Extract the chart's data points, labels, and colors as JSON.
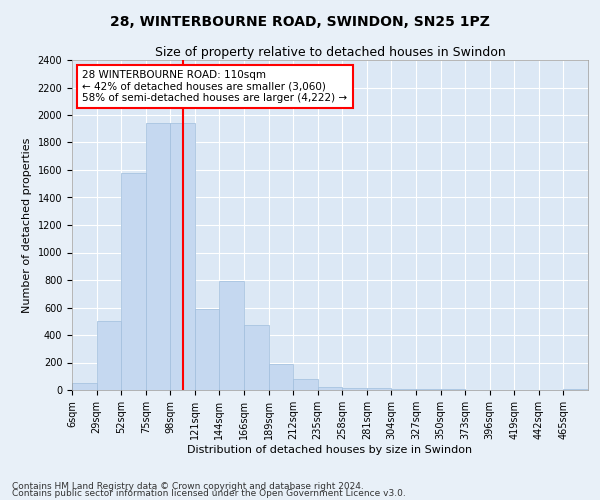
{
  "title": "28, WINTERBOURNE ROAD, SWINDON, SN25 1PZ",
  "subtitle": "Size of property relative to detached houses in Swindon",
  "xlabel": "Distribution of detached houses by size in Swindon",
  "ylabel": "Number of detached properties",
  "bar_labels": [
    "6sqm",
    "29sqm",
    "52sqm",
    "75sqm",
    "98sqm",
    "121sqm",
    "144sqm",
    "166sqm",
    "189sqm",
    "212sqm",
    "235sqm",
    "258sqm",
    "281sqm",
    "304sqm",
    "327sqm",
    "350sqm",
    "373sqm",
    "396sqm",
    "419sqm",
    "442sqm",
    "465sqm"
  ],
  "bar_values": [
    50,
    500,
    1580,
    1940,
    1940,
    590,
    790,
    470,
    190,
    80,
    25,
    15,
    15,
    5,
    5,
    5,
    0,
    0,
    0,
    0,
    5
  ],
  "bar_color": "#c5d8f0",
  "bar_edgecolor": "#a0bedd",
  "vline_color": "red",
  "property_sqm": 110,
  "ylim": [
    0,
    2400
  ],
  "yticks": [
    0,
    200,
    400,
    600,
    800,
    1000,
    1200,
    1400,
    1600,
    1800,
    2000,
    2200,
    2400
  ],
  "annotation_title": "28 WINTERBOURNE ROAD: 110sqm",
  "annotation_line1": "← 42% of detached houses are smaller (3,060)",
  "annotation_line2": "58% of semi-detached houses are larger (4,222) →",
  "annotation_box_color": "red",
  "footer1": "Contains HM Land Registry data © Crown copyright and database right 2024.",
  "footer2": "Contains public sector information licensed under the Open Government Licence v3.0.",
  "background_color": "#e8f0f8",
  "plot_bg_color": "#dce8f5",
  "grid_color": "#ffffff",
  "title_fontsize": 10,
  "subtitle_fontsize": 9,
  "axis_label_fontsize": 8,
  "tick_fontsize": 7,
  "annotation_fontsize": 7.5,
  "footer_fontsize": 6.5,
  "bin_width": 23
}
